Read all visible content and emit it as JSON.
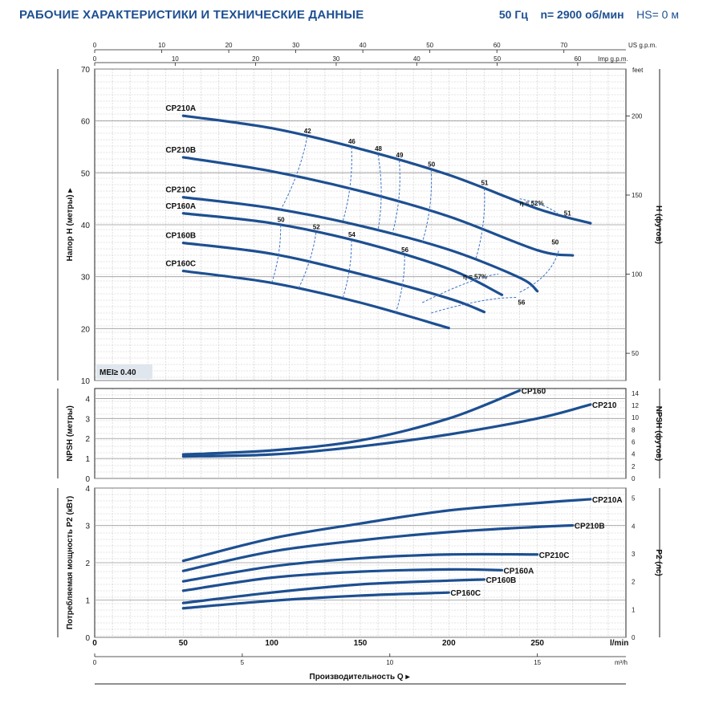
{
  "header": {
    "title": "РАБОЧИЕ ХАРАКТЕРИСТИКИ И ТЕХНИЧЕСКИЕ ДАННЫЕ",
    "freq": "50 Гц",
    "speed": "n= 2900 об/мин",
    "hs": "HS= 0 м"
  },
  "chart_data": {
    "type": "line",
    "x_axis": {
      "label": "Производительность Q",
      "unit": "l/min",
      "range": [
        0,
        300
      ],
      "ticks": [
        0,
        50,
        100,
        150,
        200,
        250
      ],
      "alt_axes": [
        {
          "unit": "m³/h",
          "ticks": [
            0,
            5,
            10,
            15
          ]
        },
        {
          "unit": "US g.p.m.",
          "ticks": [
            0,
            10,
            20,
            30,
            40,
            50,
            60,
            70
          ]
        },
        {
          "unit": "Imp g.p.m.",
          "ticks": [
            0,
            10,
            20,
            30,
            40,
            50,
            60
          ]
        }
      ]
    },
    "head": {
      "ylabel": "Напор H (метры)",
      "ylabel_right": "H (футов)",
      "ylim": [
        10,
        70
      ],
      "yticks": [
        10,
        20,
        30,
        40,
        50,
        60,
        70
      ],
      "right_unit": "feet",
      "right_ticks": [
        50,
        100,
        150,
        200
      ],
      "mei": "MEI≥ 0.40",
      "series": [
        {
          "name": "CP210A",
          "x": [
            50,
            100,
            150,
            200,
            250,
            280
          ],
          "y": [
            61,
            58.6,
            54.6,
            49.6,
            43.1,
            40.3
          ]
        },
        {
          "name": "CP210B",
          "x": [
            50,
            100,
            150,
            200,
            250,
            270
          ],
          "y": [
            53,
            50.3,
            46.5,
            41.6,
            35.1,
            34.1
          ]
        },
        {
          "name": "CP210C",
          "x": [
            50,
            100,
            150,
            200,
            240,
            250
          ],
          "y": [
            45.3,
            43.2,
            39.8,
            35.2,
            29.8,
            27.2
          ]
        },
        {
          "name": "CP160A",
          "x": [
            50,
            100,
            150,
            200,
            230
          ],
          "y": [
            42.2,
            40.3,
            36.7,
            31.5,
            26.5
          ]
        },
        {
          "name": "CP160B",
          "x": [
            50,
            100,
            150,
            200,
            220
          ],
          "y": [
            36.5,
            34.4,
            30.5,
            25.8,
            23.2
          ]
        },
        {
          "name": "CP160C",
          "x": [
            50,
            100,
            150,
            200
          ],
          "y": [
            31.1,
            28.8,
            25.0,
            20.1
          ]
        }
      ],
      "efficiency_210": [
        42,
        46,
        48,
        49,
        50,
        51,
        52,
        51,
        50
      ],
      "efficiency_160": [
        50,
        52,
        54,
        56,
        57,
        56
      ],
      "eff_label_210": "η = 52%",
      "eff_label_160": "η = 57%"
    },
    "npsh": {
      "ylabel": "NPSH (метры)",
      "ylabel_right": "NPSH (футов)",
      "ylim": [
        0,
        4.5
      ],
      "yticks": [
        0,
        1,
        2,
        3,
        4
      ],
      "right_ticks": [
        0,
        2,
        4,
        6,
        8,
        10,
        12,
        14
      ],
      "series": [
        {
          "name": "CP160",
          "x": [
            50,
            100,
            150,
            200,
            240
          ],
          "y": [
            1.2,
            1.4,
            1.9,
            3.0,
            4.4
          ]
        },
        {
          "name": "CP210",
          "x": [
            50,
            100,
            150,
            200,
            250,
            280
          ],
          "y": [
            1.1,
            1.2,
            1.6,
            2.2,
            3.0,
            3.7
          ]
        }
      ]
    },
    "power": {
      "ylabel": "Потребляемая мощность P2 (кВт)",
      "ylabel_right": "P2 (лс)",
      "ylim": [
        0,
        4
      ],
      "yticks": [
        0,
        1,
        2,
        3,
        4
      ],
      "right_ticks": [
        0,
        1,
        2,
        3,
        4,
        5
      ],
      "series": [
        {
          "name": "CP210A",
          "x": [
            50,
            100,
            150,
            200,
            250,
            280
          ],
          "y": [
            2.05,
            2.65,
            3.05,
            3.4,
            3.6,
            3.7
          ]
        },
        {
          "name": "CP210B",
          "x": [
            50,
            100,
            150,
            200,
            250,
            270
          ],
          "y": [
            1.78,
            2.3,
            2.6,
            2.82,
            2.96,
            3.0
          ]
        },
        {
          "name": "CP210C",
          "x": [
            50,
            100,
            150,
            200,
            250
          ],
          "y": [
            1.5,
            1.9,
            2.12,
            2.22,
            2.22
          ]
        },
        {
          "name": "CP160A",
          "x": [
            50,
            100,
            150,
            200,
            230
          ],
          "y": [
            1.25,
            1.6,
            1.76,
            1.82,
            1.8
          ]
        },
        {
          "name": "CP160B",
          "x": [
            50,
            100,
            150,
            200,
            220
          ],
          "y": [
            0.92,
            1.2,
            1.42,
            1.52,
            1.55
          ]
        },
        {
          "name": "CP160C",
          "x": [
            50,
            100,
            150,
            200
          ],
          "y": [
            0.78,
            0.98,
            1.12,
            1.2
          ]
        }
      ]
    }
  }
}
